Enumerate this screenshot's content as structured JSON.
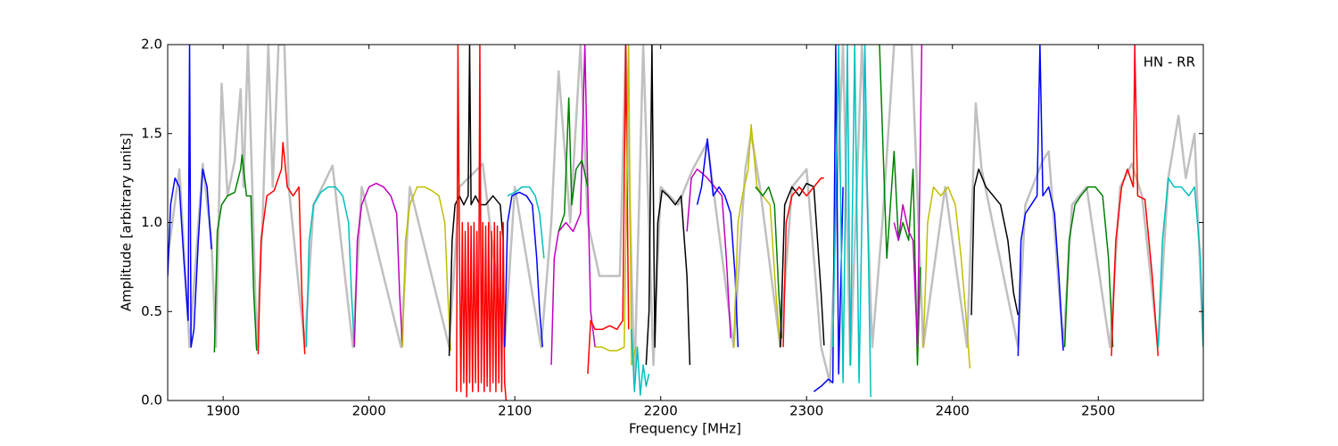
{
  "chart_data": {
    "type": "line",
    "xlabel": "Frequency [MHz]",
    "ylabel": "Amplitude [arbitrary units]",
    "annotation": "HN - RR",
    "xlim": [
      1862,
      2572
    ],
    "ylim": [
      0,
      2
    ],
    "xticks": [
      1900,
      2000,
      2100,
      2200,
      2300,
      2400,
      2500
    ],
    "yticks": [
      {
        "value": 0,
        "label": "0.0"
      },
      {
        "value": 0.5,
        "label": "0.5"
      },
      {
        "value": 1,
        "label": "1.0"
      },
      {
        "value": 1.5,
        "label": "1.5"
      },
      {
        "value": 2,
        "label": "2.0"
      }
    ],
    "grid": false,
    "series": [
      {
        "color": "#c0c0c0",
        "x": [
          1862,
          1870,
          1877,
          1886,
          1892,
          1895,
          1899,
          1903,
          1908,
          1912,
          1914,
          1917,
          1920,
          1923,
          1927,
          1931,
          1934,
          1938,
          1942,
          1945,
          1956,
          1962,
          1975,
          1989,
          1995,
          2022,
          2028,
          2055,
          2062,
          2078,
          2093,
          2100,
          2118,
          2125,
          2130,
          2138,
          2145,
          2150,
          2158,
          2172,
          2176,
          2182,
          2188,
          2195,
          2200,
          2212,
          2222,
          2232,
          2250,
          2258,
          2262,
          2268,
          2282,
          2290,
          2300,
          2310,
          2316,
          2320,
          2325,
          2330,
          2338,
          2345,
          2352,
          2360,
          2372,
          2380,
          2395,
          2410,
          2416,
          2420,
          2445,
          2450,
          2462,
          2466,
          2476,
          2482,
          2492,
          2508,
          2515,
          2523,
          2530,
          2541,
          2548,
          2555,
          2560,
          2566,
          2572
        ],
        "values": [
          0.8,
          1.3,
          0.3,
          1.33,
          0.9,
          0.3,
          1.78,
          1.15,
          1.35,
          1.75,
          1.2,
          2.0,
          1.2,
          0.3,
          1.0,
          2.0,
          1.2,
          2.0,
          2.0,
          1.2,
          0.3,
          1.1,
          1.32,
          0.3,
          1.2,
          0.3,
          1.2,
          0.3,
          1.2,
          1.33,
          0.3,
          1.2,
          0.3,
          1.0,
          1.85,
          1.0,
          2.0,
          1.0,
          0.7,
          0.7,
          2.0,
          0.1,
          2.0,
          0.2,
          1.2,
          1.1,
          1.3,
          1.45,
          0.3,
          1.3,
          1.5,
          1.2,
          0.3,
          1.2,
          1.3,
          0.3,
          0.1,
          1.0,
          2.0,
          0.2,
          2.0,
          0.3,
          1.0,
          2.0,
          2.0,
          0.3,
          1.2,
          0.3,
          1.67,
          1.3,
          0.3,
          1.1,
          1.35,
          1.4,
          0.3,
          1.1,
          1.2,
          0.3,
          1.2,
          1.33,
          1.15,
          0.3,
          1.25,
          1.6,
          1.25,
          1.5,
          0.3
        ]
      },
      {
        "color": "#0000ff",
        "x": [
          1862,
          1864,
          1867,
          1870,
          1873,
          1876,
          1877,
          1878,
          1880,
          1883,
          1886,
          1889,
          1892
        ],
        "values": [
          0.7,
          1.1,
          1.25,
          1.2,
          0.8,
          0.45,
          2.0,
          0.3,
          0.4,
          0.9,
          1.3,
          1.2,
          0.85
        ]
      },
      {
        "color": "#008000",
        "x": [
          1894,
          1896,
          1899,
          1903,
          1908,
          1912,
          1913,
          1916,
          1919,
          1921,
          1923
        ],
        "values": [
          0.27,
          0.95,
          1.1,
          1.15,
          1.17,
          1.3,
          1.38,
          1.15,
          1.15,
          0.6,
          0.28
        ]
      },
      {
        "color": "#ff0000",
        "x": [
          1924,
          1926,
          1930,
          1935,
          1940,
          1941,
          1944,
          1948,
          1952,
          1954,
          1956
        ],
        "values": [
          0.26,
          0.9,
          1.15,
          1.18,
          1.3,
          1.45,
          1.2,
          1.15,
          1.2,
          0.6,
          0.26
        ]
      },
      {
        "color": "#00bfbf",
        "x": [
          1957,
          1959,
          1962,
          1967,
          1972,
          1977,
          1982,
          1986,
          1988,
          1990
        ],
        "values": [
          0.3,
          0.9,
          1.1,
          1.17,
          1.2,
          1.2,
          1.15,
          1.0,
          0.6,
          0.3
        ]
      },
      {
        "color": "#bf00bf",
        "x": [
          1990,
          1992,
          1995,
          2000,
          2005,
          2010,
          2015,
          2019,
          2021,
          2023
        ],
        "values": [
          0.3,
          0.9,
          1.1,
          1.2,
          1.22,
          1.2,
          1.15,
          1.05,
          0.6,
          0.3
        ]
      },
      {
        "color": "#bfbf00",
        "x": [
          2023,
          2025,
          2028,
          2033,
          2038,
          2043,
          2048,
          2052,
          2054,
          2056
        ],
        "values": [
          0.3,
          0.9,
          1.1,
          1.2,
          1.2,
          1.18,
          1.15,
          1.0,
          0.6,
          0.28
        ]
      },
      {
        "color": "#000000",
        "x": [
          2055,
          2057,
          2059,
          2062,
          2065,
          2068,
          2069,
          2070,
          2073,
          2076,
          2080,
          2085,
          2090,
          2092
        ],
        "values": [
          0.25,
          0.9,
          1.1,
          1.15,
          1.1,
          1.15,
          2.0,
          1.1,
          1.15,
          1.1,
          1.1,
          1.15,
          1.1,
          0.9
        ]
      },
      {
        "color": "#ff0000",
        "x": [
          2060,
          2061,
          2062,
          2063,
          2064,
          2065,
          2066,
          2067,
          2068,
          2069,
          2070,
          2071,
          2072,
          2073,
          2074,
          2075,
          2076,
          2077,
          2078,
          2079,
          2080,
          2081,
          2082,
          2083,
          2084,
          2085,
          2086,
          2087,
          2088,
          2089,
          2090,
          2091,
          2092,
          2093,
          2094
        ],
        "values": [
          0.05,
          2.0,
          0.9,
          0.05,
          1.0,
          0.1,
          0.95,
          0.02,
          1.0,
          0.1,
          0.98,
          0.05,
          1.0,
          0.1,
          0.95,
          0.05,
          2.0,
          0.1,
          1.0,
          0.05,
          0.98,
          0.08,
          1.0,
          0.05,
          0.95,
          0.1,
          1.0,
          0.05,
          0.98,
          0.1,
          0.95,
          0.05,
          1.0,
          0.1,
          0.0
        ]
      },
      {
        "color": "#0000ff",
        "x": [
          2093,
          2095,
          2098,
          2103,
          2108,
          2112,
          2115,
          2117,
          2119
        ],
        "values": [
          0.3,
          1.0,
          1.15,
          1.17,
          1.15,
          1.1,
          0.8,
          0.5,
          0.3
        ]
      },
      {
        "color": "#00bfbf",
        "x": [
          2095,
          2100,
          2105,
          2110,
          2114,
          2117,
          2120
        ],
        "values": [
          1.15,
          1.17,
          1.2,
          1.2,
          1.15,
          1.05,
          0.8
        ]
      },
      {
        "color": "#bf00bf",
        "x": [
          2125,
          2127,
          2130,
          2135,
          2140,
          2145,
          2148,
          2150,
          2152,
          2155
        ],
        "values": [
          0.2,
          0.8,
          0.95,
          1.0,
          0.95,
          1.05,
          2.0,
          1.2,
          0.5,
          0.3
        ]
      },
      {
        "color": "#008000",
        "x": [
          2130,
          2134,
          2137,
          2139,
          2142,
          2146,
          2150
        ],
        "values": [
          0.95,
          1.05,
          1.7,
          1.1,
          1.3,
          1.35,
          1.2
        ]
      },
      {
        "color": "#ff0000",
        "x": [
          2150,
          2152,
          2155,
          2160,
          2165,
          2170,
          2174,
          2176,
          2178
        ],
        "values": [
          0.15,
          0.45,
          0.4,
          0.4,
          0.42,
          0.4,
          0.45,
          2.0,
          0.4
        ]
      },
      {
        "color": "#bfbf00",
        "x": [
          2155,
          2160,
          2165,
          2170,
          2175,
          2178,
          2180,
          2183
        ],
        "values": [
          0.3,
          0.3,
          0.28,
          0.28,
          0.3,
          2.0,
          0.2,
          0.3
        ]
      },
      {
        "color": "#00bfbf",
        "x": [
          2180,
          2182,
          2184,
          2186,
          2188,
          2190,
          2192
        ],
        "values": [
          0.4,
          0.05,
          0.3,
          0.03,
          0.2,
          0.08,
          0.15
        ]
      },
      {
        "color": "#000000",
        "x": [
          2190,
          2192,
          2194,
          2196,
          2198,
          2201,
          2205,
          2210,
          2214,
          2218,
          2220
        ],
        "values": [
          0.2,
          0.5,
          2.0,
          0.3,
          1.0,
          1.18,
          1.15,
          1.1,
          1.15,
          0.7,
          0.2
        ]
      },
      {
        "color": "#bf00bf",
        "x": [
          2218,
          2221,
          2225,
          2228,
          2232,
          2237,
          2242,
          2245,
          2248
        ],
        "values": [
          0.95,
          1.25,
          1.3,
          1.28,
          1.25,
          1.2,
          1.15,
          0.8,
          0.35
        ]
      },
      {
        "color": "#0000ff",
        "x": [
          2225,
          2228,
          2232,
          2236,
          2240,
          2244,
          2248,
          2251,
          2253
        ],
        "values": [
          1.1,
          1.2,
          1.47,
          1.15,
          1.2,
          1.15,
          1.05,
          0.7,
          0.3
        ]
      },
      {
        "color": "#bfbf00",
        "x": [
          2250,
          2253,
          2256,
          2260,
          2262,
          2266,
          2270,
          2275,
          2279,
          2282
        ],
        "values": [
          0.3,
          1.0,
          1.15,
          1.3,
          1.55,
          1.2,
          1.15,
          1.1,
          0.6,
          0.3
        ]
      },
      {
        "color": "#008000",
        "x": [
          2265,
          2270,
          2274,
          2278,
          2281,
          2283
        ],
        "values": [
          1.2,
          1.15,
          1.2,
          1.1,
          0.6,
          0.35
        ]
      },
      {
        "color": "#000000",
        "x": [
          2282,
          2285,
          2290,
          2295,
          2300,
          2305,
          2310,
          2312
        ],
        "values": [
          0.3,
          1.1,
          1.2,
          1.15,
          1.22,
          1.2,
          0.6,
          0.31
        ]
      },
      {
        "color": "#ff0000",
        "x": [
          2284,
          2286,
          2290,
          2295,
          2300,
          2305,
          2310,
          2312
        ],
        "values": [
          0.3,
          1.0,
          1.15,
          1.2,
          1.15,
          1.2,
          1.25,
          1.25
        ]
      },
      {
        "color": "#0000ff",
        "x": [
          2305,
          2310,
          2315,
          2318,
          2320,
          2322,
          2325
        ],
        "values": [
          0.05,
          0.08,
          0.12,
          0.1,
          2.0,
          0.15,
          1.2
        ]
      },
      {
        "color": "#00bfbf",
        "x": [
          2318,
          2322,
          2325,
          2328,
          2330,
          2333,
          2336,
          2340,
          2344
        ],
        "values": [
          0.3,
          2.0,
          0.1,
          2.0,
          0.2,
          2.0,
          0.1,
          2.0,
          0.02
        ]
      },
      {
        "color": "#008000",
        "x": [
          2350,
          2355,
          2360,
          2363,
          2366,
          2370,
          2373,
          2376,
          2378
        ],
        "values": [
          2.0,
          0.8,
          1.4,
          0.9,
          1.0,
          0.9,
          1.3,
          0.2,
          0.75
        ]
      },
      {
        "color": "#bf00bf",
        "x": [
          2360,
          2363,
          2366,
          2370,
          2373,
          2376,
          2379
        ],
        "values": [
          1.0,
          0.9,
          1.1,
          0.95,
          0.9,
          0.3,
          2.0
        ]
      },
      {
        "color": "#bfbf00",
        "x": [
          2380,
          2383,
          2387,
          2392,
          2397,
          2402,
          2406,
          2410,
          2412
        ],
        "values": [
          0.3,
          1.0,
          1.2,
          1.15,
          1.2,
          1.1,
          0.8,
          0.4,
          0.18
        ]
      },
      {
        "color": "#000000",
        "x": [
          2413,
          2415,
          2418,
          2423,
          2428,
          2433,
          2438,
          2442,
          2445
        ],
        "values": [
          0.48,
          1.2,
          1.3,
          1.2,
          1.15,
          1.1,
          0.9,
          0.6,
          0.48
        ]
      },
      {
        "color": "#0000ff",
        "x": [
          2445,
          2447,
          2450,
          2454,
          2458,
          2460,
          2462,
          2466,
          2470,
          2473,
          2476
        ],
        "values": [
          0.25,
          0.9,
          1.05,
          1.1,
          1.15,
          2.0,
          1.15,
          1.2,
          1.05,
          0.7,
          0.28
        ]
      },
      {
        "color": "#008000",
        "x": [
          2477,
          2480,
          2484,
          2488,
          2493,
          2498,
          2503,
          2507,
          2510
        ],
        "values": [
          0.3,
          0.9,
          1.1,
          1.15,
          1.2,
          1.2,
          1.15,
          0.8,
          0.3
        ]
      },
      {
        "color": "#ff0000",
        "x": [
          2509,
          2512,
          2516,
          2520,
          2524,
          2525,
          2527,
          2532,
          2537,
          2541
        ],
        "values": [
          0.25,
          0.9,
          1.2,
          1.3,
          1.2,
          2.0,
          1.15,
          1.13,
          0.7,
          0.25
        ]
      },
      {
        "color": "#00bfbf",
        "x": [
          2541,
          2544,
          2548,
          2552,
          2557,
          2562,
          2566,
          2570,
          2572
        ],
        "values": [
          0.3,
          0.9,
          1.25,
          1.2,
          1.2,
          1.15,
          1.2,
          0.8,
          0.3
        ]
      }
    ]
  }
}
